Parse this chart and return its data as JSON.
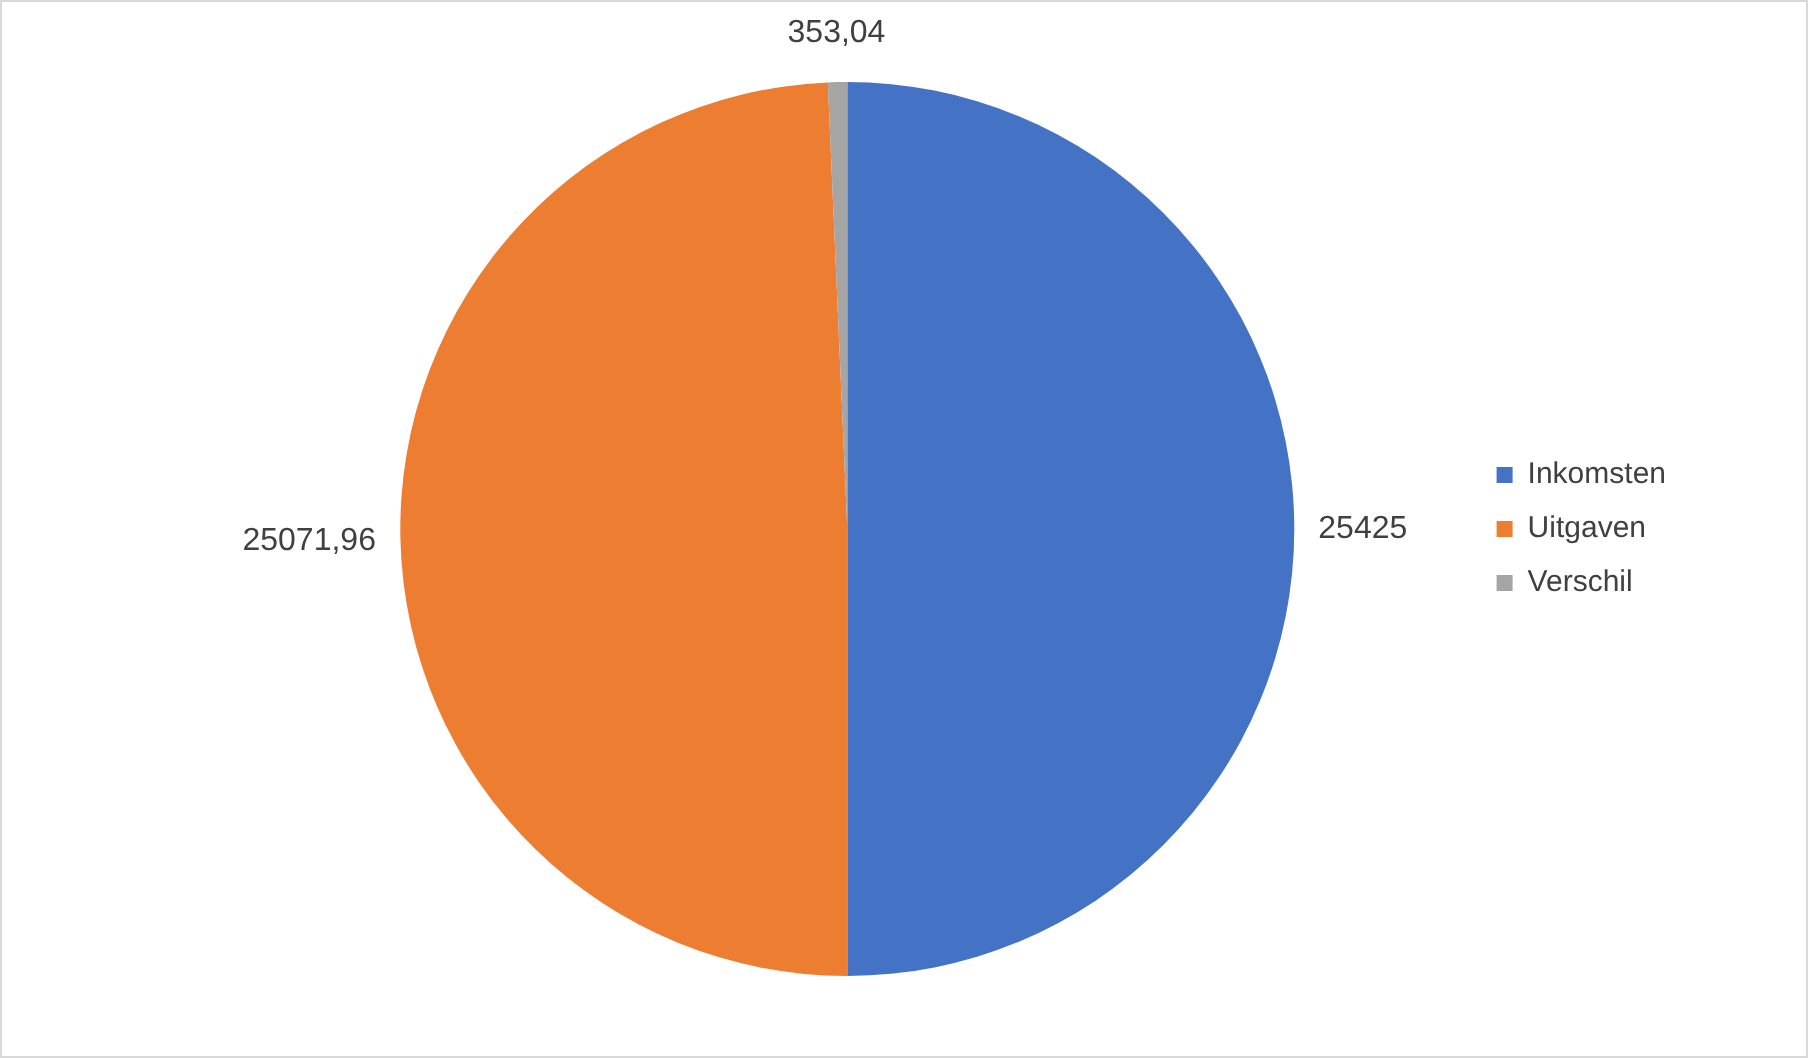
{
  "chart_data": {
    "type": "pie",
    "categories": [
      "Inkomsten",
      "Uitgaven",
      "Verschil"
    ],
    "values": [
      25425,
      25071.96,
      353.04
    ],
    "colors": [
      "#4472c4",
      "#ed7d31",
      "#a5a5a5"
    ],
    "value_labels": [
      "25425",
      "25071,96",
      "353,04"
    ],
    "legend": "right"
  }
}
